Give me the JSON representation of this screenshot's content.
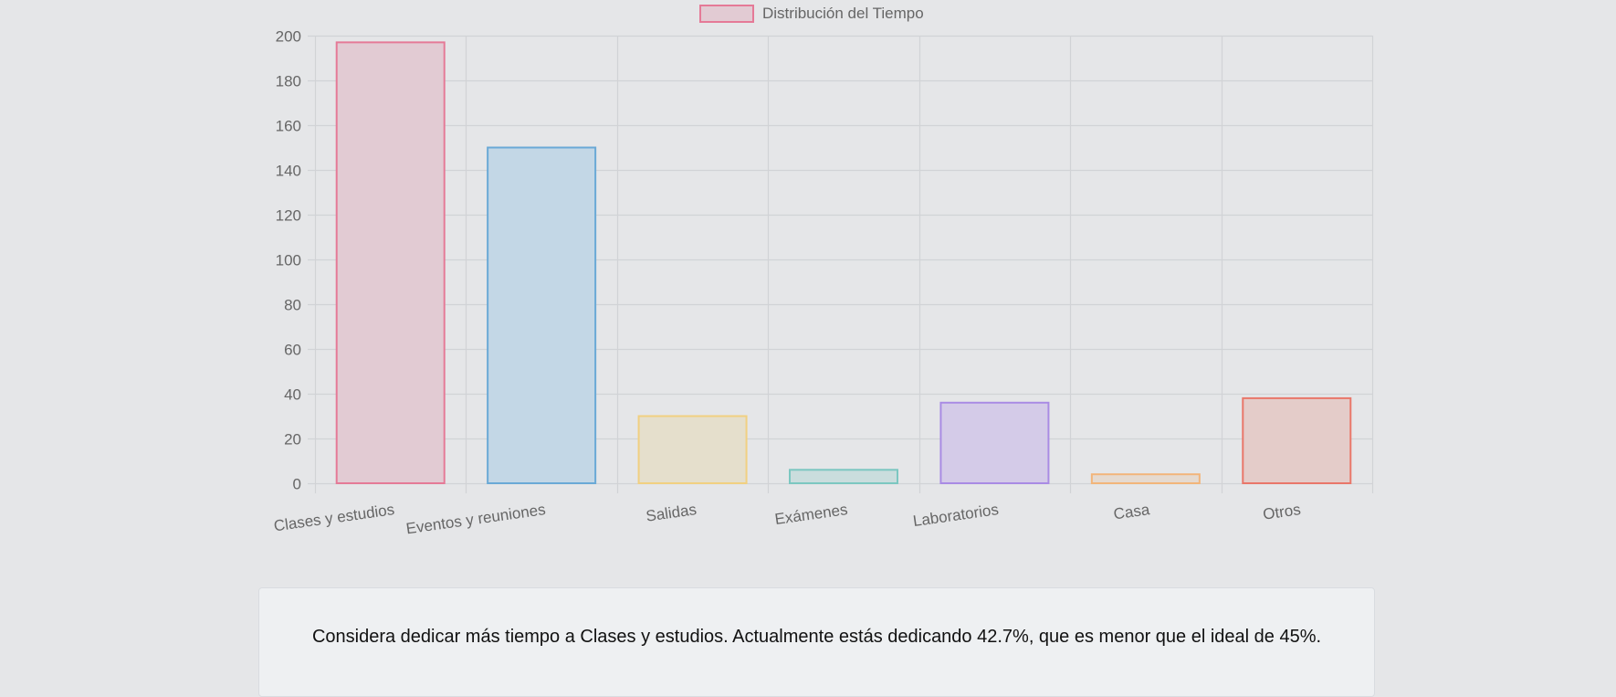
{
  "chart_data": {
    "type": "bar",
    "categories": [
      "Clases y estudios",
      "Eventos y reuniones",
      "Salidas",
      "Exámenes",
      "Laboratorios",
      "Casa",
      "Otros"
    ],
    "series": [
      {
        "name": "Distribución del Tiempo",
        "values": [
          197,
          150,
          30,
          6,
          36,
          4,
          38
        ]
      }
    ],
    "ylim": [
      0,
      200
    ],
    "yticks": [
      0,
      20,
      40,
      60,
      80,
      100,
      120,
      140,
      160,
      180,
      200
    ],
    "grid": true,
    "legend_position": "top-center",
    "colors": {
      "fills": [
        "#e2cbd3",
        "#c3d7e6",
        "#e5dfcc",
        "#cadddd",
        "#d4cbe8",
        "#e5dad0",
        "#e4ccc9"
      ],
      "borders": [
        "#e57a97",
        "#6aa9d6",
        "#f1d081",
        "#7cc7c1",
        "#a98be4",
        "#f2b57a",
        "#e9776a"
      ],
      "legend_fill": "#e2cbd3",
      "legend_border": "#e57a97",
      "grid": "#d1d3d6",
      "tick_text": "#666666"
    }
  },
  "advice": {
    "text": "Considera dedicar más tiempo a Clases y estudios. Actualmente estás dedicando 42.7%, que es menor que el ideal de 45%."
  }
}
